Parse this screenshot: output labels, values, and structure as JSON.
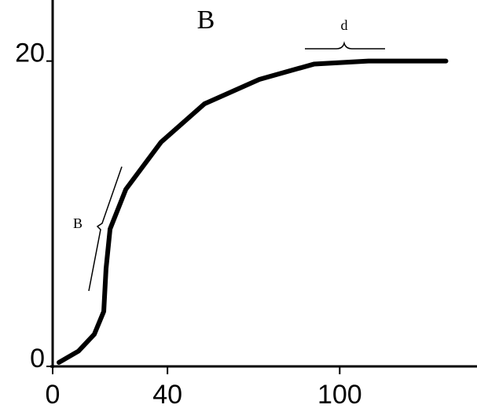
{
  "chart_data": {
    "type": "line",
    "title": "B",
    "x": [
      2.2,
      9,
      14.5,
      17.8,
      18.6,
      20,
      25.5,
      37.8,
      52.9,
      72,
      91,
      110,
      137
    ],
    "series": [
      {
        "color": "#000000",
        "values": [
          0.26,
          1.0,
          2.1,
          3.6,
          6.4,
          9.0,
          11.6,
          14.7,
          17.2,
          18.8,
          19.8,
          20.0,
          20.0
        ]
      }
    ],
    "xlim": [
      0,
      147
    ],
    "xticks": [
      0,
      40,
      100
    ],
    "ylim": [
      0,
      24
    ],
    "yticks": [
      0,
      20
    ],
    "annotations": [
      {
        "text": "B"
      },
      {
        "text": "d"
      }
    ]
  }
}
